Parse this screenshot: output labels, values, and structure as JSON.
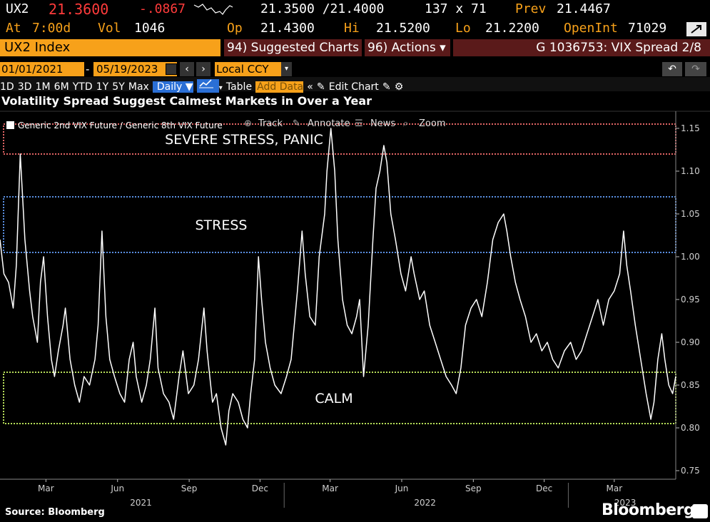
{
  "quote": {
    "ticker": "UX2",
    "last": "21.3600",
    "change": "-.0867",
    "bid_ask": "21.3500 /21.4000",
    "size": "137 x 71",
    "prev_label": "Prev",
    "prev": "21.4467",
    "at_label": "At",
    "at_time": "7:00d",
    "vol_label": "Vol",
    "vol": "1046",
    "op_label": "Op",
    "op": "21.4300",
    "hi_label": "Hi",
    "hi": "21.5200",
    "lo_label": "Lo",
    "lo": "21.2200",
    "oi_label": "OpenInt",
    "oi": "71029"
  },
  "toolbar": {
    "security": "UX2 Index",
    "suggested": "94) Suggested Charts",
    "actions": "96) Actions ▾",
    "chart_id": "G 1036753: VIX Spread 2/8"
  },
  "range": {
    "start": "01/01/2021",
    "end": "05/19/2023",
    "currency": "Local CCY"
  },
  "periods": [
    "1D",
    "3D",
    "1M",
    "6M",
    "YTD",
    "1Y",
    "5Y",
    "Max"
  ],
  "frequency": "Daily ▼",
  "table_label": "Table",
  "add_data_placeholder": "Add Data",
  "edit_chart": "Edit Chart",
  "chart_tools": {
    "track": "Track",
    "annotate": "Annotate",
    "news": "News",
    "zoom": "Zoom"
  },
  "footer": {
    "source": "Source: Bloomberg",
    "brand": "Bloomberg"
  },
  "colors": {
    "amber": "#f7a11a",
    "red": "#ff3b3b",
    "zone_panic": "#e06464",
    "zone_stress": "#5a8fe0",
    "zone_calm": "#b8e05a",
    "line": "#ffffff"
  },
  "chart_data": {
    "type": "line",
    "title": "Volatility Spread Suggest Calmest Markets in Over a Year",
    "legend": "Generic 2nd VIX Future / Generic 8th VIX Future",
    "ylim": [
      0.74,
      1.17
    ],
    "yticks": [
      0.75,
      0.8,
      0.85,
      0.9,
      0.95,
      1.0,
      1.05,
      1.1,
      1.15
    ],
    "xlim": [
      "2021-01-01",
      "2023-05-19"
    ],
    "xticks": [
      {
        "label": "Mar",
        "date": "2021-03-01"
      },
      {
        "label": "Jun",
        "date": "2021-06-01"
      },
      {
        "label": "Sep",
        "date": "2021-09-01"
      },
      {
        "label": "Dec",
        "date": "2021-12-01"
      },
      {
        "label": "Mar",
        "date": "2022-03-01"
      },
      {
        "label": "Jun",
        "date": "2022-06-01"
      },
      {
        "label": "Sep",
        "date": "2022-09-01"
      },
      {
        "label": "Dec",
        "date": "2022-12-01"
      },
      {
        "label": "Mar",
        "date": "2023-03-01"
      }
    ],
    "years": [
      {
        "label": "2021",
        "date": "2021-07-01"
      },
      {
        "label": "2022",
        "date": "2022-07-01"
      },
      {
        "label": "2023",
        "date": "2023-03-15"
      }
    ],
    "zones": [
      {
        "label": "SEVERE STRESS, PANIC",
        "from": 1.12,
        "to": 1.155,
        "color": "#e06464"
      },
      {
        "label": "STRESS",
        "from": 1.005,
        "to": 1.07,
        "color": "#5a8fe0"
      },
      {
        "label": "CALM",
        "from": 0.805,
        "to": 0.865,
        "color": "#b8e05a"
      }
    ],
    "series": [
      {
        "values": [
          [
            "2021-01-01",
            1.02
          ],
          [
            "2021-01-06",
            0.98
          ],
          [
            "2021-01-12",
            0.97
          ],
          [
            "2021-01-18",
            0.94
          ],
          [
            "2021-01-22",
            0.99
          ],
          [
            "2021-01-27",
            1.12
          ],
          [
            "2021-02-02",
            1.02
          ],
          [
            "2021-02-08",
            0.96
          ],
          [
            "2021-02-12",
            0.93
          ],
          [
            "2021-02-18",
            0.9
          ],
          [
            "2021-02-22",
            0.97
          ],
          [
            "2021-02-26",
            1.0
          ],
          [
            "2021-03-03",
            0.93
          ],
          [
            "2021-03-08",
            0.88
          ],
          [
            "2021-03-12",
            0.86
          ],
          [
            "2021-03-17",
            0.89
          ],
          [
            "2021-03-23",
            0.92
          ],
          [
            "2021-03-26",
            0.94
          ],
          [
            "2021-04-01",
            0.88
          ],
          [
            "2021-04-07",
            0.85
          ],
          [
            "2021-04-13",
            0.83
          ],
          [
            "2021-04-19",
            0.86
          ],
          [
            "2021-04-26",
            0.85
          ],
          [
            "2021-05-03",
            0.88
          ],
          [
            "2021-05-07",
            0.92
          ],
          [
            "2021-05-12",
            1.03
          ],
          [
            "2021-05-17",
            0.93
          ],
          [
            "2021-05-22",
            0.88
          ],
          [
            "2021-05-28",
            0.86
          ],
          [
            "2021-06-04",
            0.84
          ],
          [
            "2021-06-10",
            0.83
          ],
          [
            "2021-06-16",
            0.88
          ],
          [
            "2021-06-21",
            0.9
          ],
          [
            "2021-06-25",
            0.86
          ],
          [
            "2021-07-02",
            0.83
          ],
          [
            "2021-07-08",
            0.85
          ],
          [
            "2021-07-13",
            0.88
          ],
          [
            "2021-07-19",
            0.94
          ],
          [
            "2021-07-23",
            0.87
          ],
          [
            "2021-07-30",
            0.84
          ],
          [
            "2021-08-06",
            0.83
          ],
          [
            "2021-08-12",
            0.81
          ],
          [
            "2021-08-19",
            0.86
          ],
          [
            "2021-08-24",
            0.89
          ],
          [
            "2021-08-31",
            0.84
          ],
          [
            "2021-09-07",
            0.85
          ],
          [
            "2021-09-13",
            0.88
          ],
          [
            "2021-09-20",
            0.94
          ],
          [
            "2021-09-24",
            0.89
          ],
          [
            "2021-10-01",
            0.83
          ],
          [
            "2021-10-06",
            0.84
          ],
          [
            "2021-10-12",
            0.8
          ],
          [
            "2021-10-18",
            0.78
          ],
          [
            "2021-10-22",
            0.82
          ],
          [
            "2021-10-27",
            0.84
          ],
          [
            "2021-11-03",
            0.83
          ],
          [
            "2021-11-09",
            0.81
          ],
          [
            "2021-11-15",
            0.8
          ],
          [
            "2021-11-19",
            0.84
          ],
          [
            "2021-11-24",
            0.88
          ],
          [
            "2021-11-29",
            1.0
          ],
          [
            "2021-12-03",
            0.95
          ],
          [
            "2021-12-08",
            0.9
          ],
          [
            "2021-12-14",
            0.87
          ],
          [
            "2021-12-20",
            0.85
          ],
          [
            "2021-12-28",
            0.84
          ],
          [
            "2022-01-04",
            0.86
          ],
          [
            "2022-01-10",
            0.88
          ],
          [
            "2022-01-18",
            0.96
          ],
          [
            "2022-01-24",
            1.03
          ],
          [
            "2022-01-28",
            0.98
          ],
          [
            "2022-02-03",
            0.93
          ],
          [
            "2022-02-10",
            0.92
          ],
          [
            "2022-02-15",
            1.0
          ],
          [
            "2022-02-22",
            1.05
          ],
          [
            "2022-02-25",
            1.1
          ],
          [
            "2022-03-02",
            1.15
          ],
          [
            "2022-03-07",
            1.1
          ],
          [
            "2022-03-11",
            1.02
          ],
          [
            "2022-03-17",
            0.95
          ],
          [
            "2022-03-23",
            0.92
          ],
          [
            "2022-03-29",
            0.91
          ],
          [
            "2022-04-04",
            0.93
          ],
          [
            "2022-04-08",
            0.95
          ],
          [
            "2022-04-13",
            0.86
          ],
          [
            "2022-04-19",
            0.92
          ],
          [
            "2022-04-25",
            1.02
          ],
          [
            "2022-04-29",
            1.08
          ],
          [
            "2022-05-04",
            1.1
          ],
          [
            "2022-05-09",
            1.13
          ],
          [
            "2022-05-13",
            1.11
          ],
          [
            "2022-05-18",
            1.05
          ],
          [
            "2022-05-24",
            1.02
          ],
          [
            "2022-05-31",
            0.98
          ],
          [
            "2022-06-06",
            0.96
          ],
          [
            "2022-06-13",
            1.0
          ],
          [
            "2022-06-17",
            0.98
          ],
          [
            "2022-06-24",
            0.95
          ],
          [
            "2022-06-30",
            0.96
          ],
          [
            "2022-07-07",
            0.92
          ],
          [
            "2022-07-14",
            0.9
          ],
          [
            "2022-07-21",
            0.88
          ],
          [
            "2022-07-28",
            0.86
          ],
          [
            "2022-08-04",
            0.85
          ],
          [
            "2022-08-10",
            0.84
          ],
          [
            "2022-08-16",
            0.87
          ],
          [
            "2022-08-22",
            0.92
          ],
          [
            "2022-08-29",
            0.94
          ],
          [
            "2022-09-05",
            0.95
          ],
          [
            "2022-09-12",
            0.93
          ],
          [
            "2022-09-19",
            0.97
          ],
          [
            "2022-09-26",
            1.02
          ],
          [
            "2022-10-03",
            1.04
          ],
          [
            "2022-10-10",
            1.05
          ],
          [
            "2022-10-14",
            1.03
          ],
          [
            "2022-10-19",
            1.0
          ],
          [
            "2022-10-25",
            0.97
          ],
          [
            "2022-10-31",
            0.95
          ],
          [
            "2022-11-07",
            0.93
          ],
          [
            "2022-11-14",
            0.9
          ],
          [
            "2022-11-21",
            0.91
          ],
          [
            "2022-11-28",
            0.89
          ],
          [
            "2022-12-05",
            0.9
          ],
          [
            "2022-12-12",
            0.88
          ],
          [
            "2022-12-19",
            0.87
          ],
          [
            "2022-12-27",
            0.89
          ],
          [
            "2023-01-04",
            0.9
          ],
          [
            "2023-01-11",
            0.88
          ],
          [
            "2023-01-18",
            0.89
          ],
          [
            "2023-01-25",
            0.91
          ],
          [
            "2023-02-01",
            0.93
          ],
          [
            "2023-02-08",
            0.95
          ],
          [
            "2023-02-15",
            0.92
          ],
          [
            "2023-02-22",
            0.95
          ],
          [
            "2023-03-01",
            0.96
          ],
          [
            "2023-03-08",
            0.98
          ],
          [
            "2023-03-13",
            1.03
          ],
          [
            "2023-03-17",
            0.99
          ],
          [
            "2023-03-22",
            0.96
          ],
          [
            "2023-03-28",
            0.92
          ],
          [
            "2023-04-04",
            0.88
          ],
          [
            "2023-04-11",
            0.84
          ],
          [
            "2023-04-17",
            0.81
          ],
          [
            "2023-04-21",
            0.83
          ],
          [
            "2023-04-26",
            0.88
          ],
          [
            "2023-05-01",
            0.91
          ],
          [
            "2023-05-05",
            0.88
          ],
          [
            "2023-05-10",
            0.85
          ],
          [
            "2023-05-15",
            0.84
          ],
          [
            "2023-05-19",
            0.86
          ]
        ]
      }
    ]
  }
}
